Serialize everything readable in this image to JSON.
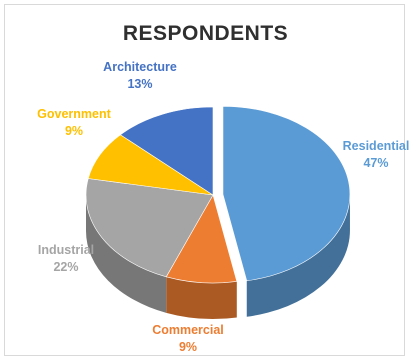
{
  "chart_data": {
    "type": "pie",
    "title": "RESPONDENTS",
    "slices": [
      {
        "label": "Residential",
        "value": 47,
        "value_label": "47%",
        "color": "#5b9bd5"
      },
      {
        "label": "Commercial",
        "value": 9,
        "value_label": "9%",
        "color": "#ed7d31"
      },
      {
        "label": "Industrial",
        "value": 22,
        "value_label": "22%",
        "color": "#a5a5a5"
      },
      {
        "label": "Government",
        "value": 9,
        "value_label": "9%",
        "color": "#ffc000"
      },
      {
        "label": "Architecture",
        "value": 13,
        "value_label": "13%",
        "color": "#4472c4"
      }
    ]
  }
}
